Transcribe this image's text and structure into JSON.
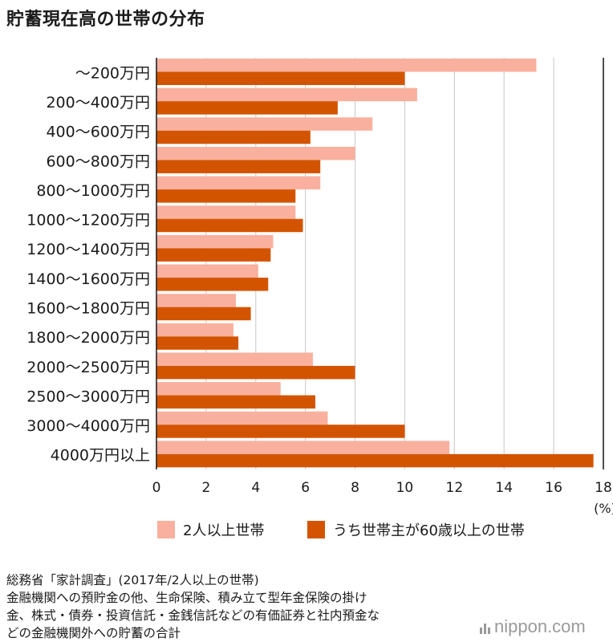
{
  "title": "貯蓄現在高の世帯の分布",
  "colors": {
    "series1": "#F9B09E",
    "series2": "#D35400",
    "grid": "#cfcfcf",
    "axis": "#222222"
  },
  "chart_data": {
    "type": "bar",
    "orientation": "horizontal",
    "categories": [
      "〜200万円",
      "200〜400万円",
      "400〜600万円",
      "600〜800万円",
      "800〜1000万円",
      "1000〜1200万円",
      "1200〜1400万円",
      "1400〜1600万円",
      "1600〜1800万円",
      "1800〜2000万円",
      "2000〜2500万円",
      "2500〜3000万円",
      "3000〜4000万円",
      "4000万円以上"
    ],
    "series": [
      {
        "name": "2人以上世帯",
        "color": "#F9B09E",
        "values": [
          15.3,
          10.5,
          8.7,
          8.0,
          6.6,
          5.6,
          4.7,
          4.1,
          3.2,
          3.1,
          6.3,
          5.0,
          6.9,
          11.8
        ]
      },
      {
        "name": "うち世帯主が60歳以上の世帯",
        "color": "#D35400",
        "values": [
          10.0,
          7.3,
          6.2,
          6.6,
          5.6,
          5.9,
          4.6,
          4.5,
          3.8,
          3.3,
          8.0,
          6.4,
          10.0,
          17.6
        ]
      }
    ],
    "xlim": [
      0,
      18
    ],
    "xticks": [
      0,
      2,
      4,
      6,
      8,
      10,
      12,
      14,
      16,
      18
    ],
    "unit_label": "(%)",
    "grid": true,
    "legend_position": "bottom"
  },
  "legend": {
    "item1": "2人以上世帯",
    "item2": "うち世帯主が60歳以上の世帯"
  },
  "source": {
    "line1": "総務省「家計調査」(2017年/2人以上の世帯)",
    "line2": "金融機関への預貯金の他、生命保険、積み立て型年金保険の掛け",
    "line3": "金、株式・債券・投資信託・金銭信託などの有価証券と社内預金な",
    "line4": "どの金融機関外への貯蓄の合計"
  },
  "logo": {
    "text": "nippon.com"
  }
}
